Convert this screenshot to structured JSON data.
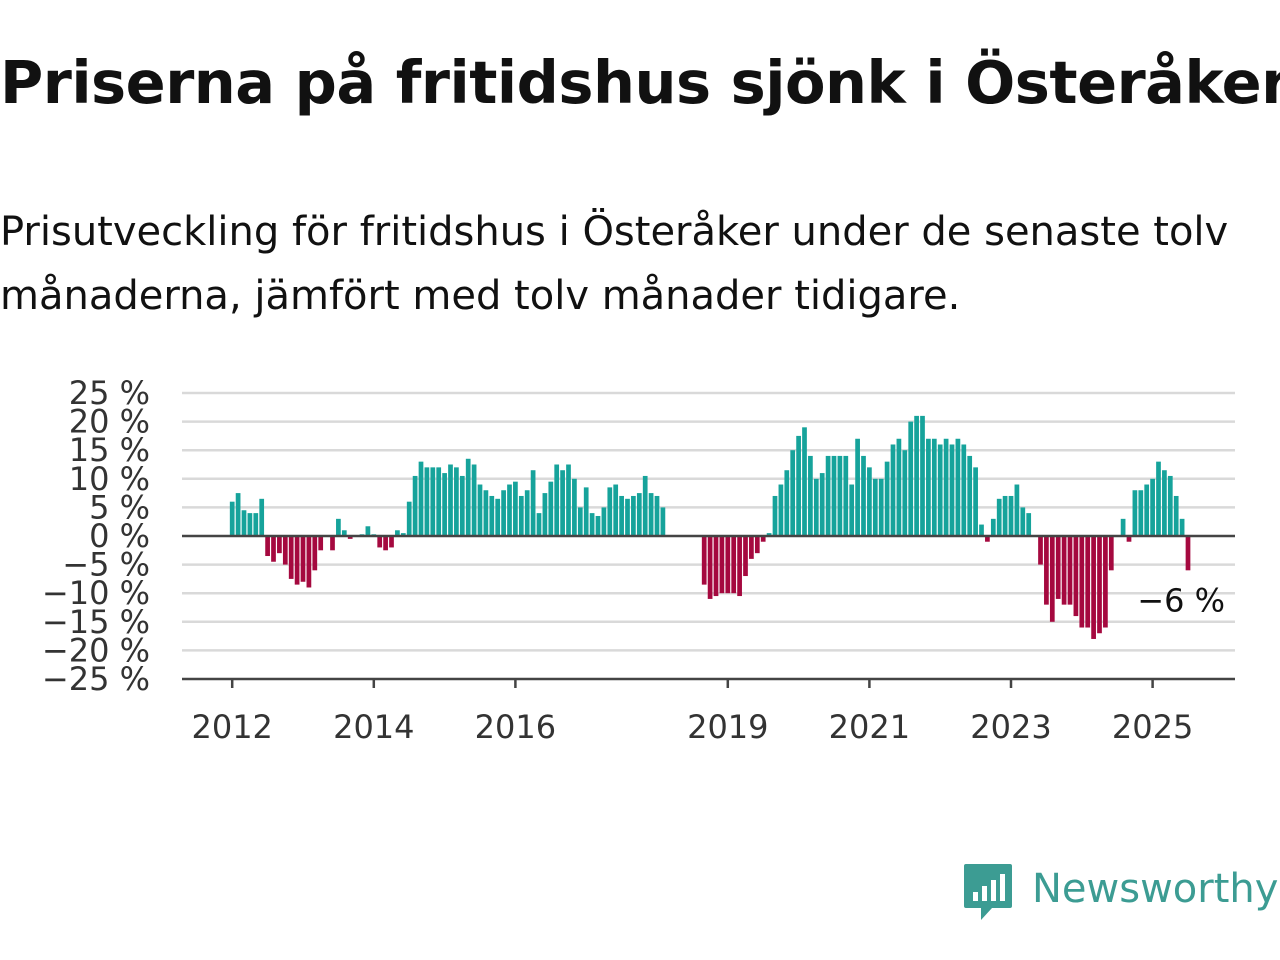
{
  "title": "Priserna på fritidshus sjönk i Österåker",
  "subtitle": "Prisutveckling för fritidshus i Österåker under de senaste tolv månaderna, jämfört med tolv månader tidigare.",
  "brand": {
    "name": "Newsworthy",
    "icon": "newsworthy-logo-icon",
    "color": "#3c9c93"
  },
  "colors": {
    "positive": "#16a39b",
    "negative": "#a5093f",
    "grid": "#d9d9d9",
    "axis": "#444444",
    "text": "#333333"
  },
  "chart_data": {
    "type": "bar",
    "title": "",
    "xlabel": "",
    "ylabel": "",
    "ylim": [
      -25,
      25
    ],
    "y_ticks": [
      25,
      20,
      15,
      10,
      5,
      0,
      -5,
      -10,
      -15,
      -20,
      -25
    ],
    "y_tick_labels": [
      "25 %",
      "20 %",
      "15 %",
      "10 %",
      "5 %",
      "0 %",
      "−5 %",
      "−10 %",
      "−15 %",
      "−20 %",
      "−25 %"
    ],
    "x_ticks": [
      2012,
      2014,
      2016,
      2019,
      2021,
      2023,
      2025
    ],
    "x_tick_labels": [
      "2012",
      "2014",
      "2016",
      "2019",
      "2021",
      "2023",
      "2025"
    ],
    "grid": true,
    "last_label": "−6 %",
    "series": [
      {
        "start": "2012-01",
        "frequency": "monthly",
        "values": [
          6,
          7.5,
          4.5,
          4,
          4,
          6.5,
          -3.5,
          -4.5,
          -3,
          -5,
          -7.5,
          -8.5,
          -8,
          -9,
          -6,
          -2.5,
          null,
          -2.5,
          3,
          1,
          -0.5,
          null,
          0.3,
          1.7,
          0.3,
          -2,
          -2.5,
          -2,
          1,
          0.5,
          6,
          10.5,
          13,
          12,
          12,
          12,
          11,
          12.5,
          12,
          10.5,
          13.5,
          12.5,
          9,
          8,
          7,
          6.5,
          8,
          9,
          9.5,
          7,
          8,
          11.5,
          4,
          7.5,
          9.5,
          12.5,
          11.5,
          12.5,
          10,
          5,
          8.5,
          4,
          3.5,
          5,
          8.5,
          9,
          7,
          6.5,
          7,
          7.5,
          10.5,
          7.5,
          7,
          5,
          null,
          null,
          null,
          null,
          null,
          null,
          -8.5,
          -11,
          -10.5,
          -10,
          -10,
          -10,
          -10.5,
          -7,
          -4,
          -3,
          -1,
          0.5,
          7,
          9,
          11.5,
          15,
          17.5,
          19,
          14,
          10,
          11,
          14,
          14,
          14,
          14,
          9,
          17,
          14,
          12,
          10,
          10,
          13,
          16,
          17,
          15,
          20,
          21,
          21,
          17,
          17,
          16,
          17,
          16,
          17,
          16,
          14,
          12,
          2,
          -1,
          3,
          6.5,
          7,
          7,
          9,
          5,
          4,
          null,
          -5,
          -12,
          -15,
          -11,
          -12,
          -12,
          -14,
          -16,
          -16,
          -18,
          -17,
          -16,
          -6,
          null,
          3,
          -1,
          8,
          8,
          9,
          10,
          13,
          11.5,
          10.5,
          7,
          3,
          -6
        ]
      }
    ]
  }
}
